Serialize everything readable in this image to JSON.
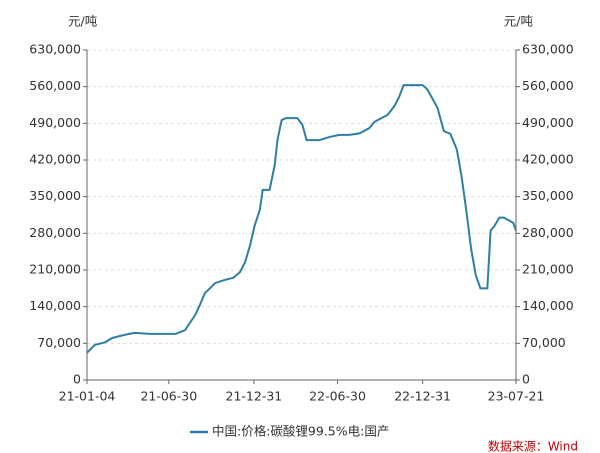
{
  "chart_data": {
    "type": "line",
    "ylabel": "元/吨",
    "y2label": "元/吨",
    "x": [
      "21-01-04",
      "21-01-21",
      "21-02-12",
      "21-02-27",
      "21-03-16",
      "21-04-05",
      "21-04-18",
      "21-05-20",
      "21-07-15",
      "21-08-04",
      "21-08-26",
      "21-09-05",
      "21-09-16",
      "21-09-27",
      "21-10-08",
      "21-10-29",
      "21-11-16",
      "21-12-01",
      "21-12-12",
      "21-12-23",
      "22-01-02",
      "22-01-13",
      "22-01-19",
      "22-02-03",
      "22-02-14",
      "22-02-20",
      "22-03-01",
      "22-03-10",
      "22-04-04",
      "22-04-15",
      "22-04-24",
      "22-05-22",
      "22-06-13",
      "22-07-04",
      "22-07-26",
      "22-08-17",
      "22-09-07",
      "22-09-18",
      "22-10-03",
      "22-10-16",
      "22-10-31",
      "22-11-10",
      "22-11-20",
      "22-12-31",
      "23-01-10",
      "23-02-01",
      "23-02-15",
      "23-03-01",
      "23-03-15",
      "23-03-25",
      "23-04-05",
      "23-04-15",
      "23-04-25",
      "23-05-05",
      "23-05-20",
      "23-05-27",
      "23-06-05",
      "23-06-15",
      "23-06-25",
      "23-07-05",
      "23-07-15",
      "23-07-21"
    ],
    "series": [
      {
        "name": "中国:价格:碳酸锂99.5%电:国产",
        "color": "#2e7ea6",
        "values": [
          52000,
          67000,
          72000,
          80000,
          84000,
          88000,
          90000,
          88000,
          88000,
          95000,
          124000,
          143000,
          166000,
          175000,
          185000,
          191000,
          195000,
          206000,
          225000,
          258000,
          296000,
          325000,
          363000,
          363000,
          410000,
          458000,
          496000,
          500000,
          500000,
          487000,
          458000,
          458000,
          464000,
          468000,
          468000,
          471000,
          481000,
          493000,
          500000,
          506000,
          523000,
          540000,
          563000,
          563000,
          555000,
          520000,
          475000,
          470000,
          440000,
          390000,
          320000,
          250000,
          200000,
          175000,
          175000,
          285000,
          295000,
          310000,
          310000,
          305000,
          300000,
          285000
        ]
      }
    ],
    "xlim": [
      "21-01-04",
      "23-07-21"
    ],
    "xticks": [
      "21-01-04",
      "21-06-30",
      "21-12-31",
      "22-06-30",
      "22-12-31",
      "23-07-21"
    ],
    "ylim": [
      0,
      630000
    ],
    "yticks": [
      0,
      {
        "value": 70000,
        "label": "70,000"
      },
      {
        "value": 140000,
        "label": "140,000"
      },
      {
        "value": 210000,
        "label": "210,000"
      },
      {
        "value": 280000,
        "label": "280,000"
      },
      {
        "value": 350000,
        "label": "350,000"
      },
      {
        "value": 420000,
        "label": "420,000"
      },
      {
        "value": 490000,
        "label": "490,000"
      },
      {
        "value": 560000,
        "label": "560,000"
      },
      {
        "value": 630000,
        "label": "630,000"
      }
    ],
    "y2lim": [
      0,
      630000
    ],
    "y2ticks": [
      0,
      {
        "value": 70000,
        "label": "70,000"
      },
      {
        "value": 140000,
        "label": "140,000"
      },
      {
        "value": 210000,
        "label": "210,000"
      },
      {
        "value": 280000,
        "label": "280,000"
      },
      {
        "value": 350000,
        "label": "350,000"
      },
      {
        "value": 420000,
        "label": "420,000"
      },
      {
        "value": 490000,
        "label": "490,000"
      },
      {
        "value": 560000,
        "label": "560,000"
      },
      {
        "value": 630000,
        "label": "630,000"
      }
    ],
    "grid": true,
    "source": "数据来源：Wind"
  }
}
